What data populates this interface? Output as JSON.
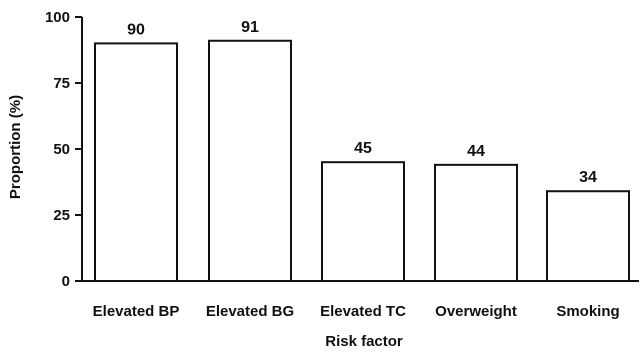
{
  "chart_data": {
    "type": "bar",
    "categories": [
      "Elevated BP",
      "Elevated BG",
      "Elevated TC",
      "Overweight",
      "Smoking"
    ],
    "values": [
      90,
      91,
      45,
      44,
      34
    ],
    "data_labels": [
      "90",
      "91",
      "45",
      "44",
      "34"
    ],
    "xlabel": "Risk factor",
    "ylabel": "Proportion (%)",
    "ylim": [
      0,
      100
    ],
    "yticks": [
      0,
      25,
      50,
      75,
      100
    ],
    "ytick_labels": [
      "0",
      "25",
      "50",
      "75",
      "100"
    ],
    "grid": false,
    "legend": "none",
    "colors": {
      "bar_fill": "#ffffff",
      "bar_stroke": "#111111"
    }
  }
}
